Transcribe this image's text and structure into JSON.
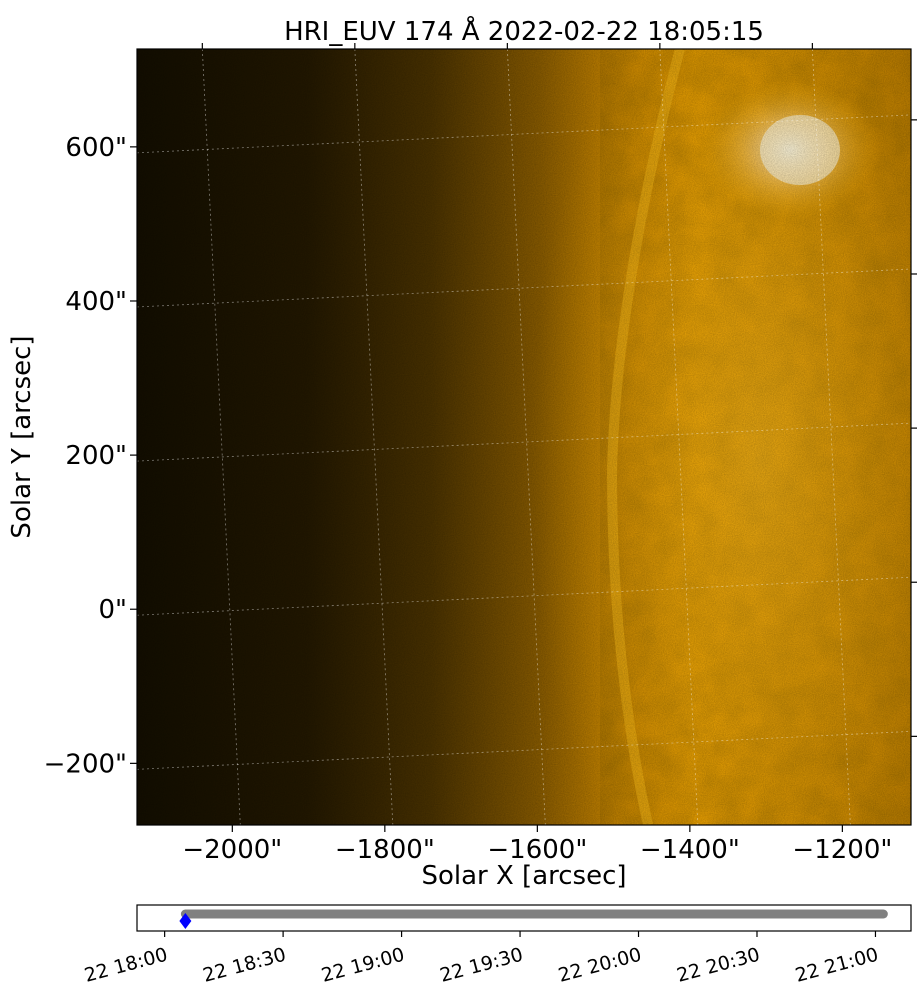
{
  "chart_data": [
    {
      "type": "heatmap",
      "title": "HRI_EUV 174 Å 2022-02-22 18:05:15",
      "xlabel": "Solar X [arcsec]",
      "ylabel": "Solar Y [arcsec]",
      "xlim": [
        -2125,
        -1110
      ],
      "ylim": [
        -280,
        727
      ],
      "x_ticks": [
        {
          "value": -2000,
          "label": "−2000\""
        },
        {
          "value": -1800,
          "label": "−1800\""
        },
        {
          "value": -1600,
          "label": "−1600\""
        },
        {
          "value": -1400,
          "label": "−1400\""
        },
        {
          "value": -1200,
          "label": "−1200\""
        }
      ],
      "y_ticks": [
        {
          "value": 600,
          "label": "600\""
        },
        {
          "value": 400,
          "label": "400\""
        },
        {
          "value": 200,
          "label": "200\""
        },
        {
          "value": 0,
          "label": "0\""
        },
        {
          "value": -200,
          "label": "−200\""
        }
      ],
      "grid": true,
      "colormap": [
        "#120d00",
        "#2a1d00",
        "#6b4600",
        "#c98400",
        "#ffb400",
        "#ffe6a0",
        "#ffffff"
      ]
    },
    {
      "type": "scatter",
      "x_type": "time",
      "x_ticks": [
        "22 18:00",
        "22 18:30",
        "22 19:00",
        "22 19:30",
        "22 20:00",
        "22 20:30",
        "22 21:00"
      ],
      "series": [
        {
          "color": "#808080",
          "x_start": "2022-02-22 18:05:15",
          "x_end": "2022-02-22 21:02:00"
        },
        {
          "color": "#0000ff",
          "marker": "diamond",
          "x": "2022-02-22 18:05:15"
        }
      ]
    }
  ]
}
